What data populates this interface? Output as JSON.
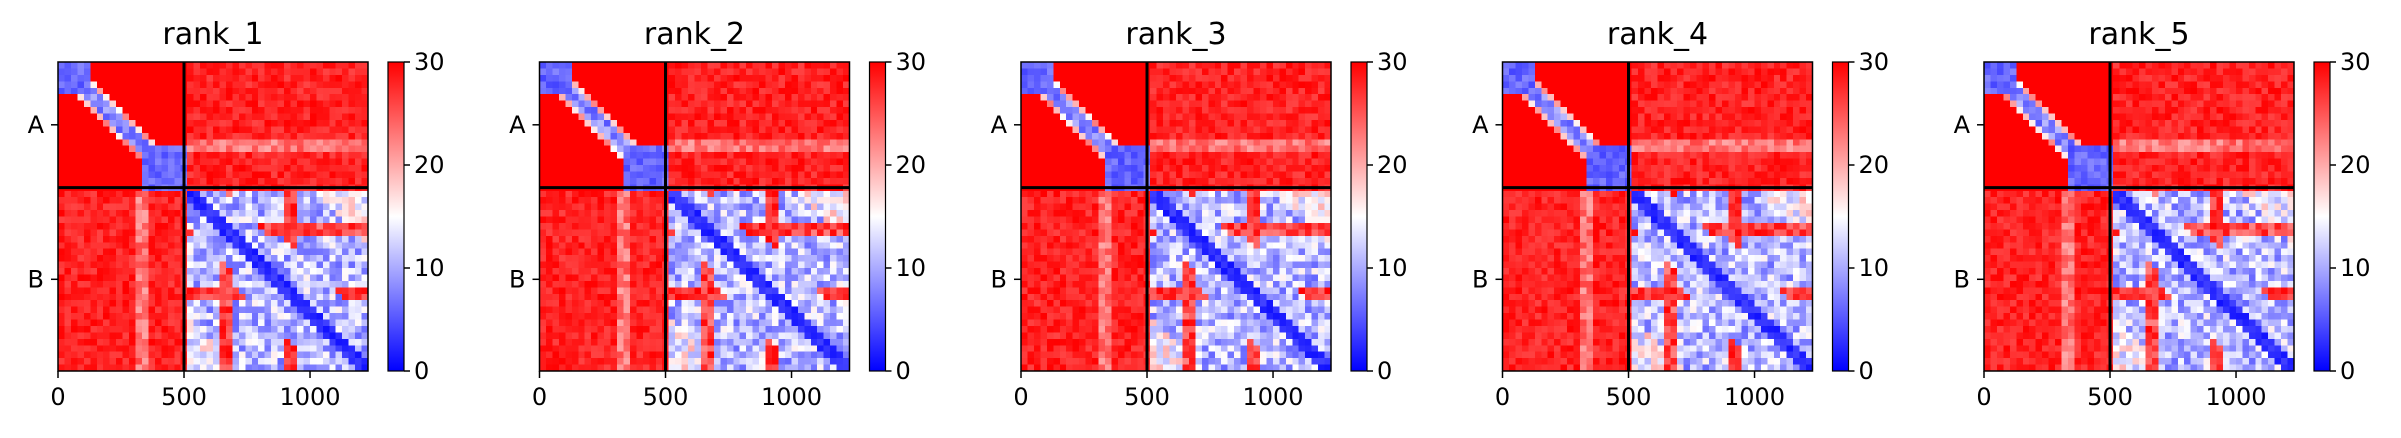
{
  "chart_data": [
    {
      "type": "heatmap",
      "title": "rank_1",
      "y_tick_labels": [
        "A",
        "B"
      ],
      "x_ticks": [
        0,
        500,
        1000
      ],
      "xlim": [
        0,
        1230
      ],
      "chain_boundary": 500,
      "colorbar": {
        "min": 0,
        "max": 30,
        "ticks": [
          0,
          10,
          20,
          30
        ]
      }
    },
    {
      "type": "heatmap",
      "title": "rank_2",
      "y_tick_labels": [
        "A",
        "B"
      ],
      "x_ticks": [
        0,
        500,
        1000
      ],
      "xlim": [
        0,
        1230
      ],
      "chain_boundary": 500,
      "colorbar": {
        "min": 0,
        "max": 30,
        "ticks": [
          0,
          10,
          20,
          30
        ]
      }
    },
    {
      "type": "heatmap",
      "title": "rank_3",
      "y_tick_labels": [
        "A",
        "B"
      ],
      "x_ticks": [
        0,
        500,
        1000
      ],
      "xlim": [
        0,
        1230
      ],
      "chain_boundary": 500,
      "colorbar": {
        "min": 0,
        "max": 30,
        "ticks": [
          0,
          10,
          20,
          30
        ]
      }
    },
    {
      "type": "heatmap",
      "title": "rank_4",
      "y_tick_labels": [
        "A",
        "B"
      ],
      "x_ticks": [
        0,
        500,
        1000
      ],
      "xlim": [
        0,
        1230
      ],
      "chain_boundary": 500,
      "colorbar": {
        "min": 0,
        "max": 30,
        "ticks": [
          0,
          10,
          20,
          30
        ]
      }
    },
    {
      "type": "heatmap",
      "title": "rank_5",
      "y_tick_labels": [
        "A",
        "B"
      ],
      "x_ticks": [
        0,
        500,
        1000
      ],
      "xlim": [
        0,
        1230
      ],
      "chain_boundary": 500,
      "colorbar": {
        "min": 0,
        "max": 30,
        "ticks": [
          0,
          10,
          20,
          30
        ]
      }
    }
  ],
  "colors": {
    "low": "#0000ff",
    "mid": "#ffffff",
    "high": "#ff0000",
    "divider": "#000000"
  }
}
